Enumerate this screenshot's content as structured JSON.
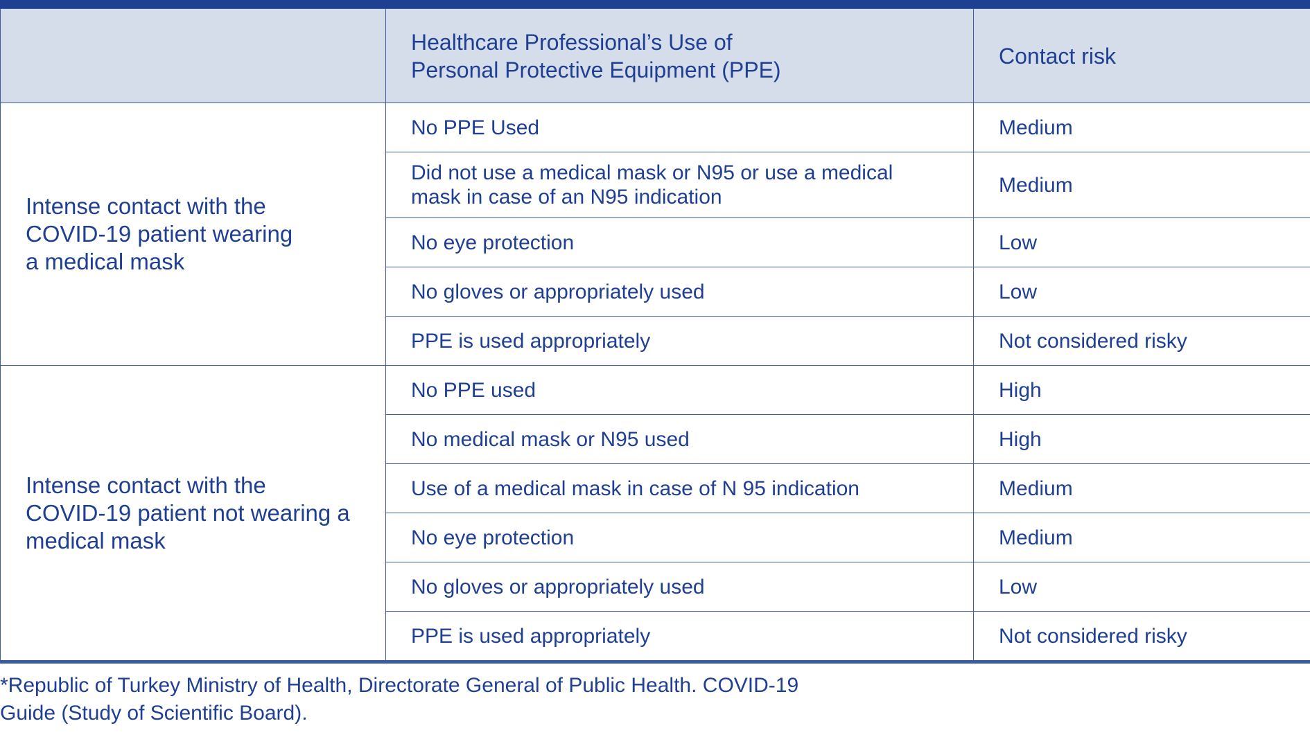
{
  "table": {
    "headers": [
      "",
      "Healthcare Professional’s Use of Personal Protective Equipment (PPE)",
      "Contact risk"
    ],
    "header_lines": {
      "ppe_line1": "Healthcare Professional’s Use of",
      "ppe_line2": "Personal Protective Equipment (PPE)"
    },
    "groups": [
      {
        "label_lines": [
          "Intense contact with the",
          "COVID-19 patient wearing",
          "a medical mask"
        ],
        "rows": [
          {
            "ppe": [
              "No PPE Used"
            ],
            "risk": "Medium"
          },
          {
            "ppe": [
              "Did not use a medical mask or N95 or use a medical",
              "mask in case of an N95 indication"
            ],
            "risk": "Medium"
          },
          {
            "ppe": [
              "No eye protection"
            ],
            "risk": "Low"
          },
          {
            "ppe": [
              "No gloves or appropriately used"
            ],
            "risk": "Low"
          },
          {
            "ppe": [
              "PPE is used appropriately"
            ],
            "risk": "Not considered risky"
          }
        ]
      },
      {
        "label_lines": [
          "Intense contact with the",
          "COVID-19 patient not wearing a",
          "medical mask"
        ],
        "rows": [
          {
            "ppe": [
              "No PPE used"
            ],
            "risk": "High"
          },
          {
            "ppe": [
              "No medical mask or N95 used"
            ],
            "risk": "High"
          },
          {
            "ppe": [
              "Use of a medical mask in case of N 95 indication"
            ],
            "risk": "Medium"
          },
          {
            "ppe": [
              "No eye protection"
            ],
            "risk": "Medium"
          },
          {
            "ppe": [
              "No gloves or appropriately used"
            ],
            "risk": "Low"
          },
          {
            "ppe": [
              "PPE is used appropriately"
            ],
            "risk": "Not considered risky"
          }
        ]
      }
    ]
  },
  "footnote": {
    "line1": "*Republic of Turkey Ministry of Health, Directorate General of Public Health. COVID-19",
    "line2": "Guide (Study of Scientific Board)."
  },
  "colors": {
    "text": "#1f3f93",
    "header_bg": "#d5ddeb",
    "border": "#3b5aa3"
  }
}
